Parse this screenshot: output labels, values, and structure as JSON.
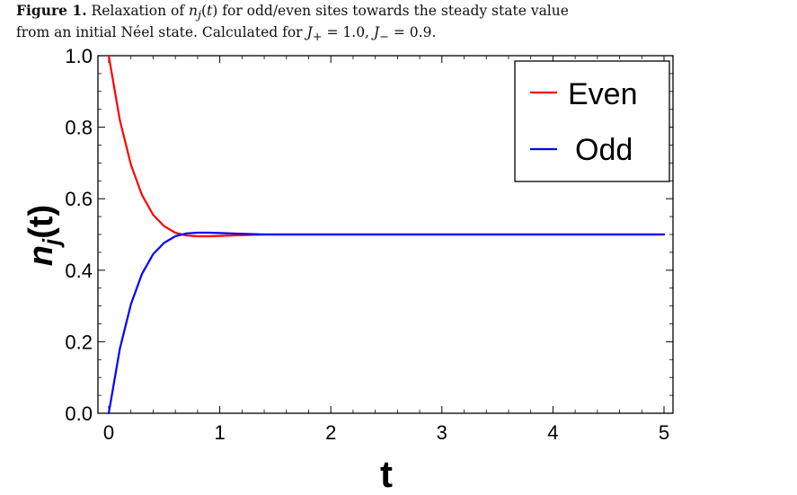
{
  "caption": {
    "label": "Figure 1.",
    "line1": "Relaxation of n_j(t) for odd/even sites towards the steady state value",
    "line2": "from an initial Néel state. Calculated for J_+ = 1.0, J_− = 0.9."
  },
  "chart_data": {
    "type": "line",
    "xlabel": "t",
    "ylabel": "n_j(t)",
    "xlim": [
      0,
      5
    ],
    "ylim": [
      0,
      1
    ],
    "xticks": [
      "0",
      "1",
      "2",
      "3",
      "4",
      "5"
    ],
    "yticks": [
      "0.0",
      "0.2",
      "0.4",
      "0.6",
      "0.8",
      "1.0"
    ],
    "grid": false,
    "legend": "top-right",
    "series": [
      {
        "name": "Even",
        "color": "#ff0000",
        "x": [
          0,
          0.1,
          0.2,
          0.3,
          0.4,
          0.5,
          0.6,
          0.7,
          0.8,
          0.9,
          1.0,
          1.2,
          1.4,
          1.6,
          2.0,
          3.0,
          4.0,
          5.0
        ],
        "y": [
          1.0,
          0.82,
          0.695,
          0.61,
          0.555,
          0.523,
          0.505,
          0.497,
          0.495,
          0.495,
          0.496,
          0.498,
          0.5,
          0.5,
          0.5,
          0.5,
          0.5,
          0.5
        ]
      },
      {
        "name": "Odd",
        "color": "#0000ff",
        "x": [
          0,
          0.1,
          0.2,
          0.3,
          0.4,
          0.5,
          0.6,
          0.7,
          0.8,
          0.9,
          1.0,
          1.2,
          1.4,
          1.6,
          2.0,
          3.0,
          4.0,
          5.0
        ],
        "y": [
          0.0,
          0.18,
          0.305,
          0.39,
          0.445,
          0.477,
          0.495,
          0.503,
          0.505,
          0.505,
          0.504,
          0.502,
          0.5,
          0.5,
          0.5,
          0.5,
          0.5,
          0.5
        ]
      }
    ]
  }
}
